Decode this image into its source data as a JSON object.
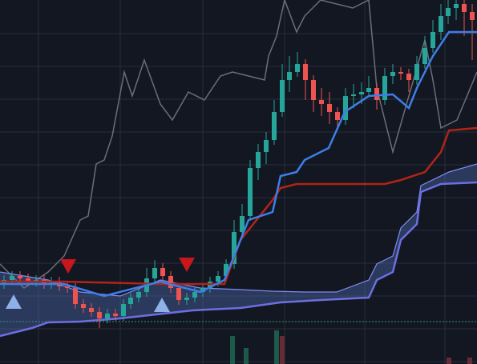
{
  "chart_data": {
    "type": "candlestick",
    "xlim": [
      0,
      595
    ],
    "ylim": [
      0,
      455
    ],
    "xticks": [
      48,
      150,
      253,
      355,
      455,
      555
    ],
    "yticks": [
      413,
      372,
      331,
      290,
      249,
      208,
      167,
      126,
      85,
      44,
      3
    ],
    "grid": true,
    "up_color": "#26a69a",
    "down_color": "#ef5350",
    "candles": {
      "x": [
        5,
        15,
        25,
        35,
        45,
        55,
        64,
        74,
        84,
        94,
        104,
        114,
        124,
        134,
        144,
        154,
        163,
        173,
        183,
        193,
        203,
        213,
        223,
        233,
        243,
        253,
        262,
        272,
        282,
        292,
        302,
        312,
        322,
        332,
        342,
        352,
        361,
        371,
        381,
        391,
        401,
        411,
        421,
        431,
        441,
        451,
        460,
        470,
        480,
        490,
        500,
        510,
        520,
        530,
        540,
        550,
        559,
        569,
        579,
        589
      ],
      "open": [
        100,
        105,
        110,
        107,
        103,
        105,
        100,
        103,
        97,
        95,
        75,
        70,
        65,
        57,
        63,
        60,
        75,
        83,
        90,
        107,
        120,
        110,
        95,
        80,
        83,
        90,
        95,
        103,
        110,
        125,
        165,
        185,
        245,
        265,
        280,
        315,
        355,
        365,
        375,
        355,
        330,
        325,
        315,
        305,
        335,
        337,
        340,
        345,
        330,
        360,
        365,
        363,
        355,
        375,
        395,
        415,
        435,
        445,
        450,
        440
      ],
      "high": [
        111,
        116,
        116,
        113,
        111,
        111,
        109,
        109,
        103,
        101,
        81,
        76,
        71,
        69,
        69,
        81,
        89,
        96,
        120,
        130,
        126,
        116,
        101,
        89,
        96,
        101,
        109,
        116,
        131,
        180,
        200,
        255,
        275,
        290,
        330,
        375,
        385,
        390,
        381,
        361,
        345,
        340,
        321,
        345,
        350,
        352,
        360,
        351,
        370,
        375,
        371,
        369,
        385,
        410,
        430,
        450,
        455,
        455,
        455,
        450
      ],
      "low": [
        94,
        99,
        101,
        97,
        97,
        94,
        94,
        91,
        89,
        69,
        64,
        59,
        45,
        51,
        54,
        54,
        69,
        77,
        84,
        101,
        104,
        89,
        74,
        74,
        77,
        84,
        89,
        97,
        104,
        119,
        159,
        179,
        230,
        250,
        274,
        309,
        340,
        359,
        330,
        315,
        310,
        300,
        295,
        299,
        320,
        325,
        334,
        318,
        324,
        350,
        355,
        340,
        349,
        369,
        389,
        405,
        425,
        430,
        410,
        380
      ],
      "close": [
        105,
        110,
        107,
        103,
        105,
        100,
        103,
        97,
        95,
        75,
        70,
        65,
        57,
        63,
        60,
        75,
        83,
        90,
        107,
        120,
        110,
        95,
        80,
        83,
        90,
        95,
        103,
        110,
        125,
        165,
        185,
        245,
        265,
        280,
        315,
        355,
        365,
        375,
        355,
        330,
        325,
        315,
        305,
        335,
        337,
        340,
        345,
        330,
        360,
        365,
        363,
        355,
        375,
        395,
        415,
        435,
        445,
        450,
        440,
        430
      ]
    },
    "lines": [
      {
        "color": "#6b6e77",
        "x": [
          0,
          30,
          60,
          80,
          100,
          110,
          120,
          130,
          140,
          155,
          165,
          180,
          200,
          215,
          235,
          255,
          275,
          290,
          310,
          330,
          335,
          345,
          355,
          370,
          380,
          400,
          440,
          460,
          470,
          490,
          510,
          530,
          540,
          550,
          570,
          595
        ],
        "values": [
          125,
          95,
          115,
          135,
          180,
          185,
          250,
          255,
          285,
          365,
          335,
          380,
          325,
          305,
          340,
          330,
          360,
          365,
          360,
          355,
          385,
          410,
          455,
          415,
          435,
          455,
          445,
          455,
          345,
          265,
          335,
          405,
          355,
          295,
          305,
          365
        ]
      },
      {
        "color": "#7f8cf0",
        "x": [
          0,
          60,
          100,
          150,
          200,
          250,
          300,
          340,
          380,
          420,
          460,
          470,
          490,
          500,
          520,
          525,
          560,
          595
        ],
        "values": [
          115,
          105,
          90,
          85,
          105,
          95,
          93,
          91,
          90,
          90,
          105,
          125,
          135,
          170,
          190,
          223,
          240,
          250
        ]
      },
      {
        "color": "#6c6fe0",
        "x": [
          0,
          40,
          60,
          100,
          150,
          240,
          300,
          350,
          400,
          460,
          470,
          490,
          500,
          520,
          525,
          550,
          595
        ],
        "values": [
          35,
          45,
          52,
          53,
          57,
          67,
          70,
          77,
          80,
          83,
          105,
          115,
          155,
          175,
          215,
          225,
          227
        ]
      },
      {
        "color": "#b22418",
        "x": [
          0,
          80,
          200,
          280,
          300,
          340,
          350,
          370,
          480,
          500,
          530,
          550,
          560,
          595
        ],
        "values": [
          103,
          103,
          100,
          100,
          155,
          205,
          220,
          225,
          225,
          230,
          240,
          265,
          292,
          295
        ]
      },
      {
        "color": "#3d7ee8",
        "x": [
          0,
          80,
          130,
          200,
          250,
          280,
          300,
          310,
          340,
          350,
          370,
          380,
          410,
          430,
          460,
          490,
          510,
          520,
          540,
          560,
          595
        ],
        "values": [
          100,
          100,
          85,
          103,
          90,
          105,
          155,
          180,
          190,
          235,
          240,
          255,
          270,
          315,
          335,
          337,
          320,
          345,
          385,
          415,
          415
        ]
      }
    ],
    "cloud_color": "#5a78c8",
    "signals_up": {
      "color": "#8fb0e8",
      "x": [
        17,
        202
      ],
      "values": [
        77,
        73
      ]
    },
    "signals_down": {
      "color": "#c8161d",
      "x": [
        85,
        233
      ],
      "values": [
        123,
        125
      ]
    },
    "volume": {
      "x": [
        290,
        307,
        345,
        352,
        560,
        586
      ],
      "values": [
        35,
        20,
        42,
        35,
        8,
        8
      ],
      "colors": [
        "#1e5a4a",
        "#1e5a4a",
        "#1e5a4a",
        "#6a2a35",
        "#6a2a35",
        "#6a2a35"
      ]
    },
    "baseline": {
      "value": 53,
      "color": "#2e9b6a"
    }
  }
}
